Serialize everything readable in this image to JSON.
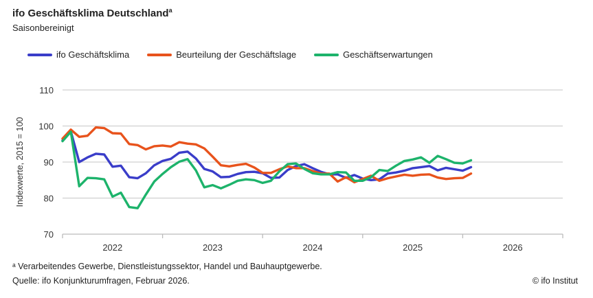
{
  "title": "ifo Geschäftsklima Deutschland",
  "title_sup": "a",
  "subtitle": "Saisonbereinigt",
  "footnote": "ᵃ Verarbeitendes Gewerbe, Dienstleistungssektor, Handel und Bauhauptgewerbe.",
  "source": "Quelle: ifo Konjunkturumfragen, Februar 2026.",
  "copyright": "© ifo Institut",
  "chart_data": {
    "type": "line",
    "title": "ifo Geschäftsklima Deutschland",
    "xlabel": "",
    "ylabel": "Indexwerte, 2015 = 100",
    "ylim": [
      70,
      110
    ],
    "yticks": [
      "70",
      "80",
      "90",
      "100",
      "110"
    ],
    "xticks": [
      "2022",
      "2023",
      "2024",
      "2025",
      "2026"
    ],
    "x_start": "2022-01",
    "x_end": "2026-02",
    "grid": true,
    "legend_position": "top-left",
    "series": [
      {
        "name": "ifo Geschäftsklima",
        "color": "#3a3dc9",
        "values": [
          96,
          98.5,
          90,
          91.3,
          92.3,
          92.1,
          88.7,
          89,
          85.8,
          85.5,
          86.9,
          89.1,
          90.3,
          90.9,
          92.6,
          92.9,
          91,
          88.1,
          87.4,
          85.8,
          85.9,
          86.7,
          87.2,
          87.3,
          86.9,
          85.6,
          85.7,
          87.8,
          88.9,
          89.4,
          88.3,
          87.3,
          86.6,
          86.6,
          85.6,
          86.4,
          85.4,
          85,
          85.2,
          86.8,
          87.1,
          87.6,
          88.3,
          88.6,
          88.9,
          87.7,
          88.4,
          88,
          87.6,
          88.6
        ]
      },
      {
        "name": "Beurteilung der Geschäftslage",
        "color": "#e8531c",
        "values": [
          96.5,
          99,
          97,
          97.3,
          99.6,
          99.4,
          98,
          97.9,
          95,
          94.7,
          93.5,
          94.4,
          94.6,
          94.3,
          95.5,
          95.1,
          94.9,
          93.8,
          91.5,
          89.1,
          88.8,
          89.2,
          89.5,
          88.5,
          87,
          87,
          88,
          88.8,
          88.3,
          88.3,
          87.5,
          86.8,
          86.8,
          84.6,
          85.8,
          84.4,
          85.3,
          86.2,
          84.8,
          85.5,
          86,
          86.5,
          86.2,
          86.5,
          86.6,
          85.7,
          85.3,
          85.5,
          85.6,
          86.8
        ]
      },
      {
        "name": "Geschäftserwartungen",
        "color": "#1db36b",
        "values": [
          95.8,
          98.4,
          83.3,
          85.6,
          85.5,
          85.2,
          80.4,
          81.5,
          77.5,
          77.2,
          81,
          84.6,
          86.7,
          88.6,
          90.1,
          90.8,
          87.7,
          83,
          83.6,
          82.7,
          83.7,
          84.8,
          85.2,
          85,
          84.2,
          84.8,
          87.4,
          89.4,
          89.6,
          88.1,
          86.9,
          86.6,
          86.6,
          87.2,
          87.1,
          84.8,
          84.8,
          85.8,
          87.8,
          87.5,
          89,
          90.3,
          90.7,
          91.3,
          89.8,
          91.7,
          90.8,
          89.8,
          89.6,
          90.5
        ]
      }
    ]
  }
}
